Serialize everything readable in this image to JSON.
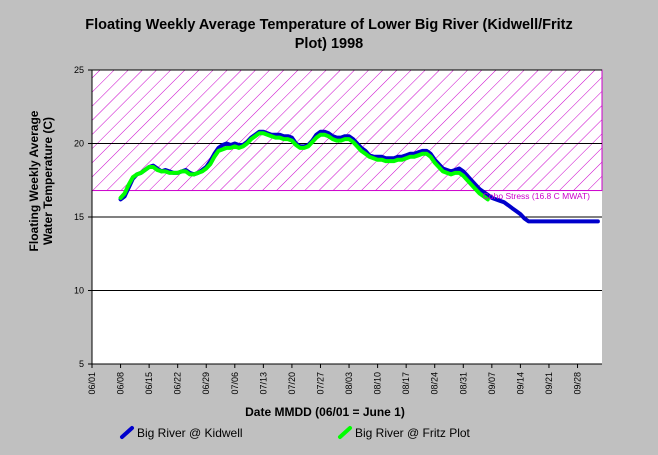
{
  "chart_data": {
    "type": "line",
    "title_lines": [
      "Floating Weekly Average Temperature of Lower Big River (Kidwell/Fritz",
      "Plot) 1998"
    ],
    "xlabel": "Date MMDD (06/01 = June 1)",
    "ylabel_lines": [
      "Floating Weekly Average",
      "Water Temperature (C)"
    ],
    "ylim": [
      5,
      25
    ],
    "yticks": [
      5,
      10,
      15,
      20,
      25
    ],
    "xlim": [
      0,
      125
    ],
    "xticks": [
      {
        "day": 0,
        "label": "06/01"
      },
      {
        "day": 7,
        "label": "06/08"
      },
      {
        "day": 14,
        "label": "06/15"
      },
      {
        "day": 21,
        "label": "06/22"
      },
      {
        "day": 28,
        "label": "06/29"
      },
      {
        "day": 35,
        "label": "07/06"
      },
      {
        "day": 42,
        "label": "07/13"
      },
      {
        "day": 49,
        "label": "07/20"
      },
      {
        "day": 56,
        "label": "07/27"
      },
      {
        "day": 63,
        "label": "08/03"
      },
      {
        "day": 70,
        "label": "08/10"
      },
      {
        "day": 77,
        "label": "08/17"
      },
      {
        "day": 84,
        "label": "08/24"
      },
      {
        "day": 91,
        "label": "08/31"
      },
      {
        "day": 98,
        "label": "09/07"
      },
      {
        "day": 105,
        "label": "09/14"
      },
      {
        "day": 112,
        "label": "09/21"
      },
      {
        "day": 119,
        "label": "09/28"
      }
    ],
    "grid": "horizontal",
    "stress_band": {
      "ymin": 16.8,
      "ymax": 25,
      "label": "Coho Stress (16.8 C MWAT)",
      "color": "#cc00cc"
    },
    "legend_position": "bottom",
    "series": [
      {
        "name": "Big River @ Kidwell",
        "color": "#0000cc",
        "x": [
          7,
          8,
          9,
          10,
          11,
          12,
          13,
          14,
          15,
          16,
          17,
          18,
          19,
          20,
          21,
          22,
          23,
          24,
          25,
          26,
          27,
          28,
          29,
          30,
          31,
          32,
          33,
          34,
          35,
          36,
          37,
          38,
          39,
          40,
          41,
          42,
          43,
          44,
          45,
          46,
          47,
          48,
          49,
          50,
          51,
          52,
          53,
          54,
          55,
          56,
          57,
          58,
          59,
          60,
          61,
          62,
          63,
          64,
          65,
          66,
          67,
          68,
          69,
          70,
          71,
          72,
          73,
          74,
          75,
          76,
          77,
          78,
          79,
          80,
          81,
          82,
          83,
          84,
          85,
          86,
          87,
          88,
          89,
          90,
          91,
          92,
          93,
          94,
          95,
          96,
          97,
          98,
          99,
          100,
          101,
          102,
          103,
          104,
          105,
          106,
          107,
          108,
          109,
          110,
          111,
          112,
          113,
          114,
          115,
          116,
          117,
          118,
          119,
          120,
          121,
          122,
          123,
          124
        ],
        "y": [
          16.2,
          16.4,
          17.0,
          17.6,
          17.9,
          18.0,
          18.2,
          18.4,
          18.5,
          18.3,
          18.1,
          18.2,
          18.1,
          18.0,
          18.0,
          18.1,
          18.2,
          18.0,
          17.9,
          18.0,
          18.2,
          18.4,
          18.8,
          19.3,
          19.7,
          19.9,
          20.0,
          19.9,
          20.0,
          19.9,
          19.9,
          20.1,
          20.4,
          20.6,
          20.8,
          20.8,
          20.7,
          20.6,
          20.6,
          20.6,
          20.5,
          20.5,
          20.4,
          20.0,
          19.8,
          19.8,
          19.9,
          20.2,
          20.6,
          20.8,
          20.8,
          20.7,
          20.5,
          20.4,
          20.4,
          20.5,
          20.5,
          20.3,
          20.0,
          19.7,
          19.5,
          19.2,
          19.1,
          19.1,
          19.1,
          19.0,
          19.0,
          19.0,
          19.1,
          19.1,
          19.2,
          19.3,
          19.3,
          19.4,
          19.5,
          19.5,
          19.3,
          18.9,
          18.6,
          18.3,
          18.2,
          18.1,
          18.2,
          18.3,
          18.1,
          17.8,
          17.5,
          17.2,
          16.9,
          16.7,
          16.5,
          16.3,
          16.2,
          16.1,
          16.0,
          15.8,
          15.6,
          15.4,
          15.2,
          14.9,
          14.7,
          14.7,
          14.7,
          14.7,
          14.7,
          14.7,
          14.7,
          14.7,
          14.7,
          14.7,
          14.7,
          14.7,
          14.7,
          14.7,
          14.7,
          14.7,
          14.7,
          14.7
        ]
      },
      {
        "name": "Big River @ Fritz Plot",
        "color": "#00ff00",
        "x": [
          7,
          8,
          9,
          10,
          11,
          12,
          13,
          14,
          15,
          16,
          17,
          18,
          19,
          20,
          21,
          22,
          23,
          24,
          25,
          26,
          27,
          28,
          29,
          30,
          31,
          32,
          33,
          34,
          35,
          36,
          37,
          38,
          39,
          40,
          41,
          42,
          43,
          44,
          45,
          46,
          47,
          48,
          49,
          50,
          51,
          52,
          53,
          54,
          55,
          56,
          57,
          58,
          59,
          60,
          61,
          62,
          63,
          64,
          65,
          66,
          67,
          68,
          69,
          70,
          71,
          72,
          73,
          74,
          75,
          76,
          77,
          78,
          79,
          80,
          81,
          82,
          83,
          84,
          85,
          86,
          87,
          88,
          89,
          90,
          91,
          92,
          93,
          94,
          95,
          96,
          97
        ],
        "y": [
          16.3,
          16.6,
          17.2,
          17.7,
          17.9,
          18.0,
          18.2,
          18.4,
          18.4,
          18.2,
          18.1,
          18.1,
          18.0,
          18.0,
          18.0,
          18.1,
          18.1,
          17.9,
          17.9,
          18.0,
          18.1,
          18.3,
          18.6,
          19.1,
          19.5,
          19.6,
          19.7,
          19.7,
          19.8,
          19.7,
          19.8,
          20.0,
          20.3,
          20.5,
          20.7,
          20.7,
          20.6,
          20.5,
          20.4,
          20.4,
          20.3,
          20.3,
          20.2,
          19.9,
          19.7,
          19.7,
          19.8,
          20.1,
          20.4,
          20.6,
          20.6,
          20.5,
          20.3,
          20.2,
          20.2,
          20.3,
          20.3,
          20.1,
          19.8,
          19.5,
          19.3,
          19.1,
          19.0,
          18.9,
          18.9,
          18.8,
          18.8,
          18.8,
          18.9,
          18.9,
          19.0,
          19.1,
          19.1,
          19.2,
          19.3,
          19.3,
          19.1,
          18.7,
          18.4,
          18.1,
          18.0,
          17.9,
          18.0,
          18.0,
          17.8,
          17.5,
          17.2,
          16.9,
          16.6,
          16.4,
          16.2
        ]
      }
    ]
  }
}
